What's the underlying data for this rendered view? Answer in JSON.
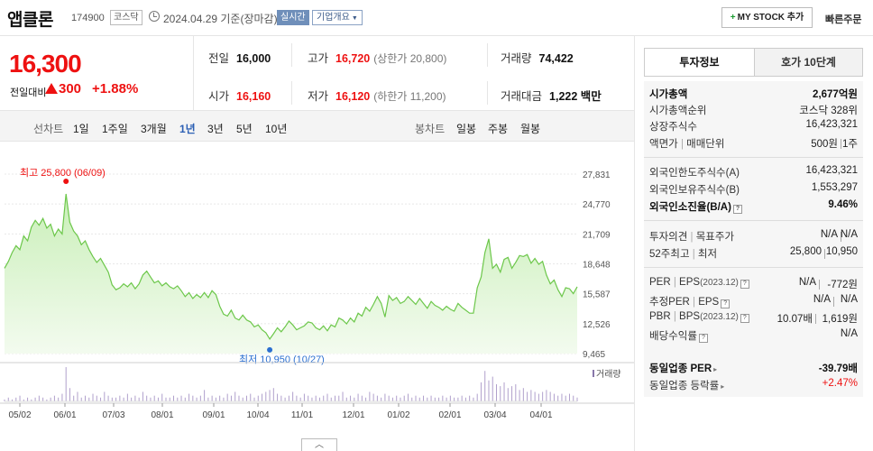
{
  "header": {
    "name": "앱클론",
    "code": "174900",
    "market": "코스닥",
    "date": "2024.04.29 기준(장마감)",
    "live": "실시간",
    "company": "기업개요",
    "mystock_prefix": "+",
    "mystock": "MY STOCK 추가",
    "quick_order": "빠른주문"
  },
  "price": {
    "current": "16,300",
    "change_label": "전일대비",
    "change": "300",
    "change_pct": "+1.88%",
    "up_color": "#e11111"
  },
  "stats": {
    "prev_label": "전일",
    "prev": "16,000",
    "high_label": "고가",
    "high": "16,720",
    "upper_limit": "(상한가 20,800)",
    "volume_label": "거래량",
    "volume": "74,422",
    "open_label": "시가",
    "open": "16,160",
    "low_label": "저가",
    "low": "16,120",
    "lower_limit": "(하한가 11,200)",
    "amount_label": "거래대금",
    "amount": "1,222 백만"
  },
  "tabs": {
    "line_chart": "선차트",
    "ranges": [
      "1일",
      "1주일",
      "3개월",
      "1년",
      "3년",
      "5년",
      "10년"
    ],
    "selected_range": "1년",
    "candle_chart": "봉차트",
    "candles": [
      "일봉",
      "주봉",
      "월봉"
    ]
  },
  "chart_data": {
    "type": "area",
    "y_ticks": [
      "27,831",
      "24,770",
      "21,709",
      "18,648",
      "15,587",
      "12,526",
      "9,465"
    ],
    "ylim": [
      9465,
      27831
    ],
    "x_ticks": [
      "05/02",
      "06/01",
      "07/03",
      "08/01",
      "09/01",
      "10/04",
      "11/01",
      "12/01",
      "01/02",
      "02/01",
      "03/04",
      "04/01"
    ],
    "high_label": "최고 25,800 (06/09)",
    "high_value": 25800,
    "high_index": 16,
    "low_label": "최저 10,950 (10/27)",
    "low_value": 10950,
    "low_index": 69,
    "volume_legend": "거래량",
    "series": [
      {
        "values": [
          18200,
          18900,
          19800,
          20500,
          20100,
          21500,
          21000,
          22400,
          23100,
          22600,
          23300,
          22300,
          22700,
          21500,
          22200,
          21700,
          25800,
          22900,
          22000,
          21500,
          20600,
          21000,
          20100,
          19400,
          18800,
          19200,
          18500,
          17800,
          16500,
          16000,
          16200,
          16600,
          16300,
          16700,
          16100,
          16600,
          17500,
          17900,
          17300,
          16700,
          16900,
          16400,
          16700,
          16300,
          16100,
          16400,
          15900,
          15300,
          15700,
          15100,
          15500,
          15200,
          15700,
          15200,
          15900,
          15500,
          14300,
          13500,
          13300,
          13900,
          13100,
          12900,
          13400,
          12900,
          12700,
          12200,
          12400,
          11900,
          11600,
          10950,
          11500,
          12100,
          11700,
          12200,
          12800,
          12400,
          11900,
          12100,
          12300,
          12700,
          12600,
          12100,
          11900,
          12300,
          11800,
          12400,
          12200,
          13100,
          12900,
          12500,
          13100,
          12700,
          13600,
          13300,
          14200,
          13800,
          14500,
          15300,
          14600,
          13200,
          15400,
          14900,
          15200,
          14600,
          14800,
          15300,
          14900,
          14500,
          15100,
          14600,
          14100,
          14800,
          14400,
          14200,
          13900,
          14300,
          14000,
          13800,
          14600,
          14200,
          13900,
          13600,
          13600,
          16200,
          17300,
          19800,
          21200,
          18200,
          18600,
          17800,
          19100,
          19300,
          18200,
          18800,
          19500,
          19400,
          19600,
          18700,
          19200,
          18600,
          18900,
          17500,
          16600,
          17000,
          16000,
          15300,
          16200,
          16100,
          15600,
          16300
        ]
      }
    ],
    "volume": [
      1,
      2,
      1,
      2,
      3,
      1,
      2,
      1,
      2,
      3,
      2,
      1,
      2,
      3,
      2,
      4,
      18,
      7,
      3,
      5,
      2,
      3,
      2,
      4,
      3,
      2,
      5,
      3,
      2,
      2,
      3,
      2,
      4,
      2,
      3,
      2,
      5,
      3,
      2,
      3,
      2,
      4,
      2,
      2,
      3,
      2,
      3,
      2,
      4,
      3,
      2,
      3,
      6,
      2,
      3,
      2,
      3,
      2,
      4,
      3,
      5,
      3,
      2,
      3,
      4,
      2,
      3,
      4,
      5,
      6,
      7,
      4,
      3,
      2,
      3,
      5,
      3,
      2,
      4,
      3,
      2,
      3,
      2,
      3,
      4,
      2,
      3,
      3,
      5,
      2,
      3,
      2,
      4,
      3,
      2,
      5,
      4,
      3,
      2,
      4,
      3,
      2,
      3,
      2,
      3,
      4,
      2,
      3,
      2,
      3,
      2,
      3,
      2,
      2,
      3,
      2,
      3,
      2,
      2,
      3,
      2,
      3,
      2,
      4,
      10,
      16,
      11,
      13,
      9,
      8,
      10,
      7,
      8,
      9,
      6,
      7,
      5,
      6,
      5,
      4,
      5,
      6,
      5,
      4,
      3,
      4,
      3,
      4,
      3,
      2
    ]
  },
  "expand_icon": "chevron-up-icon",
  "panel": {
    "tab_info": "투자정보",
    "tab_quote": "호가 10단계",
    "market_cap_label": "시가총액",
    "market_cap": "2,677억원",
    "rank_label": "시가총액순위",
    "rank": "코스닥 328위",
    "shares_label": "상장주식수",
    "shares": "16,423,321",
    "par_label": "액면가",
    "unit_label": "매매단위",
    "par": "500원",
    "unit": "1주",
    "foreign_limit_label": "외국인한도주식수(A)",
    "foreign_limit": "16,423,321",
    "foreign_hold_label": "외국인보유주식수(B)",
    "foreign_hold": "1,553,297",
    "foreign_ratio_label": "외국인소진율(B/A)",
    "foreign_ratio": "9.46%",
    "opinion_label": "투자의견",
    "target_label": "목표주가",
    "opinion": "N/A",
    "target": "N/A",
    "week52_label": "52주최고",
    "week52_low_label": "최저",
    "week52_high": "25,800",
    "week52_low": "10,950",
    "per_label": "PER",
    "eps_label": "EPS",
    "eps_period": "(2023.12)",
    "per": "N/A",
    "eps": "-772원",
    "est_per_label": "추정PER",
    "est_eps_label": "EPS",
    "est_per": "N/A",
    "est_eps": "N/A",
    "pbr_label": "PBR",
    "bps_label": "BPS",
    "bps_period": "(2023.12)",
    "pbr": "10.07배",
    "bps": "1,619원",
    "div_label": "배당수익률",
    "div": "N/A",
    "industry_per_label": "동일업종 PER",
    "industry_per": "-39.79배",
    "industry_rate_label": "동일업종 등락률",
    "industry_rate": "+2.47%",
    "help_glyph": "?"
  }
}
